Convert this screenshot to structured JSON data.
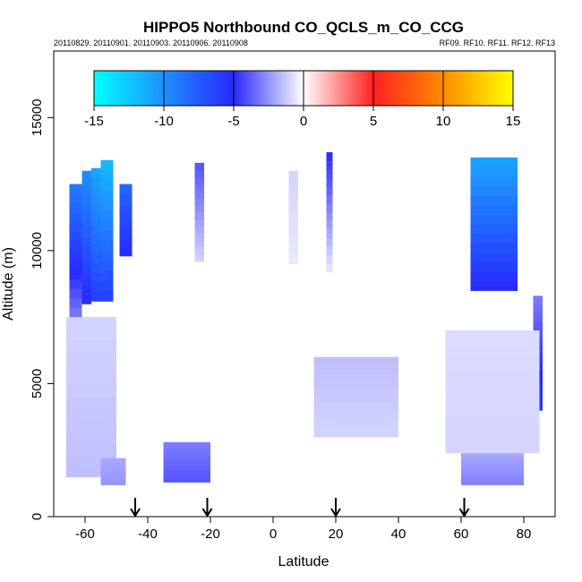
{
  "chart_data": {
    "type": "heatmap",
    "title": "HIPPO5 Northbound CO_QCLS_m_CO_CCG",
    "subtitle_left": "20110829. 20110901. 20110903. 20110906. 20110908",
    "subtitle_right": "RF09. RF10. RF11. RF12. RF13",
    "xlabel": "Latitude",
    "ylabel": "Altitude (m)",
    "xlim": [
      -70,
      90
    ],
    "ylim": [
      0,
      17500
    ],
    "x_ticks": [
      -60,
      -40,
      -20,
      0,
      20,
      40,
      60,
      80
    ],
    "x_tick_labels": [
      "-60",
      "-40",
      "-20",
      "0",
      "20",
      "40",
      "60",
      "80"
    ],
    "y_ticks": [
      0,
      5000,
      10000,
      15000
    ],
    "y_tick_labels": [
      "0",
      "5000",
      "10000",
      "15000"
    ],
    "colorbar": {
      "ticks": [
        -15,
        -10,
        -5,
        0,
        5,
        10,
        15
      ],
      "tick_labels": [
        "-15",
        "-10",
        "-5",
        "0",
        "5",
        "10",
        "15"
      ],
      "stops": [
        {
          "value": -15,
          "color": "#00ffff"
        },
        {
          "value": -10,
          "color": "#1e90ff"
        },
        {
          "value": -5,
          "color": "#2828ff"
        },
        {
          "value": 0,
          "color": "#ffffff"
        },
        {
          "value": 5,
          "color": "#ff2020"
        },
        {
          "value": 10,
          "color": "#ff8c00"
        },
        {
          "value": 15,
          "color": "#ffff00"
        }
      ]
    },
    "arrows_latitude": [
      -44,
      -21,
      20,
      61
    ],
    "regions": [
      {
        "name": "south-upper-band-1",
        "lat": [
          -65,
          -61
        ],
        "alt": [
          7500,
          12500
        ],
        "value_bottom": -3,
        "value_top": -9
      },
      {
        "name": "south-upper-band-2",
        "lat": [
          -61,
          -58
        ],
        "alt": [
          8000,
          13000
        ],
        "value_bottom": -5,
        "value_top": -10
      },
      {
        "name": "south-upper-band-3",
        "lat": [
          -58,
          -55
        ],
        "alt": [
          8100,
          13100
        ],
        "value_bottom": -6,
        "value_top": -11
      },
      {
        "name": "south-upper-band-4",
        "lat": [
          -55,
          -51
        ],
        "alt": [
          8100,
          13400
        ],
        "value_bottom": -6,
        "value_top": -12
      },
      {
        "name": "south-upper-band-5",
        "lat": [
          -49,
          -45
        ],
        "alt": [
          9800,
          12500
        ],
        "value_bottom": -5,
        "value_top": -8
      },
      {
        "name": "mid-south-column",
        "lat": [
          -25,
          -22
        ],
        "alt": [
          9600,
          13300
        ],
        "value_bottom": -1,
        "value_top": -4
      },
      {
        "name": "tropical-column-1",
        "lat": [
          5,
          8
        ],
        "alt": [
          9500,
          13000
        ],
        "value_bottom": -0.5,
        "value_top": -1
      },
      {
        "name": "tropical-column-2",
        "lat": [
          17,
          19
        ],
        "alt": [
          9200,
          13700
        ],
        "value_bottom": -0.5,
        "value_top": -5
      },
      {
        "name": "north-upper-plume",
        "lat": [
          63,
          78
        ],
        "alt": [
          8500,
          13500
        ],
        "value_bottom": -5,
        "value_top": -11
      },
      {
        "name": "arctic-edge-plume",
        "lat": [
          83,
          86
        ],
        "alt": [
          4000,
          8300
        ],
        "value_bottom": -6,
        "value_top": -3
      },
      {
        "name": "south-lower-troposphere",
        "lat": [
          -66,
          -50
        ],
        "alt": [
          1500,
          7500
        ],
        "value_bottom": -1.5,
        "value_top": -1
      },
      {
        "name": "south-boundary-layer",
        "lat": [
          -55,
          -47
        ],
        "alt": [
          1200,
          2200
        ],
        "value_bottom": -2.5,
        "value_top": -2
      },
      {
        "name": "subtropical-boundary-layer",
        "lat": [
          -35,
          -20
        ],
        "alt": [
          1300,
          2800
        ],
        "value_bottom": -4,
        "value_top": -3
      },
      {
        "name": "tropical-mid-layer",
        "lat": [
          13,
          40
        ],
        "alt": [
          3000,
          6000
        ],
        "value_bottom": -1,
        "value_top": -1.5
      },
      {
        "name": "north-boundary-layer",
        "lat": [
          60,
          80
        ],
        "alt": [
          1200,
          2400
        ],
        "value_bottom": -3,
        "value_top": -2
      },
      {
        "name": "north-lower-troposphere",
        "lat": [
          55,
          85
        ],
        "alt": [
          2400,
          7000
        ],
        "value_bottom": -1,
        "value_top": -0.8
      }
    ]
  }
}
